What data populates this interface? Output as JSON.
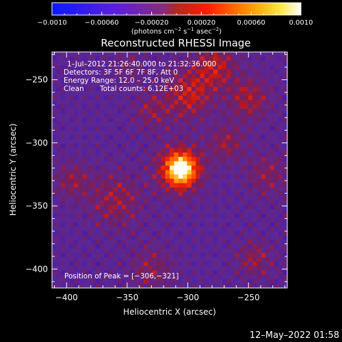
{
  "chart_data": {
    "type": "heatmap",
    "title": "Reconstructed RHESSI Image",
    "xlabel": "Heliocentric X (arcsec)",
    "ylabel": "Heliocentric Y (arcsec)",
    "xlim": [
      -412,
      -218
    ],
    "ylim": [
      -415,
      -228
    ],
    "xticks": [
      -400,
      -350,
      -300,
      -250
    ],
    "xtick_labels": [
      "−400",
      "−350",
      "−300",
      "−250"
    ],
    "yticks": [
      -250,
      -300,
      -350,
      -400
    ],
    "ytick_labels": [
      "−250",
      "−300",
      "−350",
      "−400"
    ],
    "colorbar": {
      "range": [
        -0.001,
        0.001
      ],
      "ticks": [
        -0.001,
        -0.0006,
        -0.0002,
        0.0002,
        0.0006,
        0.001
      ],
      "tick_labels": [
        "−0.0010",
        "−0.00060",
        "−0.00020",
        "0.00020",
        "0.00060",
        "0.0010"
      ],
      "units_parts": [
        "(photons cm",
        "−2",
        " s",
        "−1",
        " asec",
        "−2",
        ")"
      ]
    },
    "annotations": {
      "time_range": "1–Jul–2012 21:26:40.000 to 21:32:36.000",
      "detectors": "Detectors: 3F 5F 6F 7F 8F, Att 0",
      "energy_range": "Energy Range: 12.0 – 25.0 keV",
      "clean_label": "Clean",
      "total_counts": "Total counts: 6.12E+03",
      "peak_position": "Position of Peak = [−306,−321]"
    },
    "peak": {
      "x": -306,
      "y": -321
    },
    "sources": [
      {
        "x": -306,
        "y": -321,
        "amp": 1.0,
        "sigma": 7
      },
      {
        "x": -306,
        "y": -321,
        "amp": 0.45,
        "sigma": 13
      },
      {
        "x": -300,
        "y": -262,
        "amp": 0.32,
        "sigma": 13
      },
      {
        "x": -278,
        "y": -240,
        "amp": 0.3,
        "sigma": 12
      },
      {
        "x": -250,
        "y": -265,
        "amp": 0.26,
        "sigma": 12
      },
      {
        "x": -268,
        "y": -300,
        "amp": 0.22,
        "sigma": 10
      },
      {
        "x": -360,
        "y": -345,
        "amp": 0.22,
        "sigma": 15
      },
      {
        "x": -395,
        "y": -330,
        "amp": 0.2,
        "sigma": 10
      },
      {
        "x": -235,
        "y": -325,
        "amp": 0.18,
        "sigma": 12
      },
      {
        "x": -245,
        "y": -392,
        "amp": 0.2,
        "sigma": 10
      },
      {
        "x": -330,
        "y": -400,
        "amp": 0.18,
        "sigma": 12
      },
      {
        "x": -330,
        "y": -275,
        "amp": 0.18,
        "sigma": 10
      },
      {
        "x": -350,
        "y": -240,
        "amp": 0.12,
        "sigma": 9
      }
    ],
    "background_level": -0.2
  },
  "footer": {
    "date_stamp": "12–May–2022 01:58"
  }
}
